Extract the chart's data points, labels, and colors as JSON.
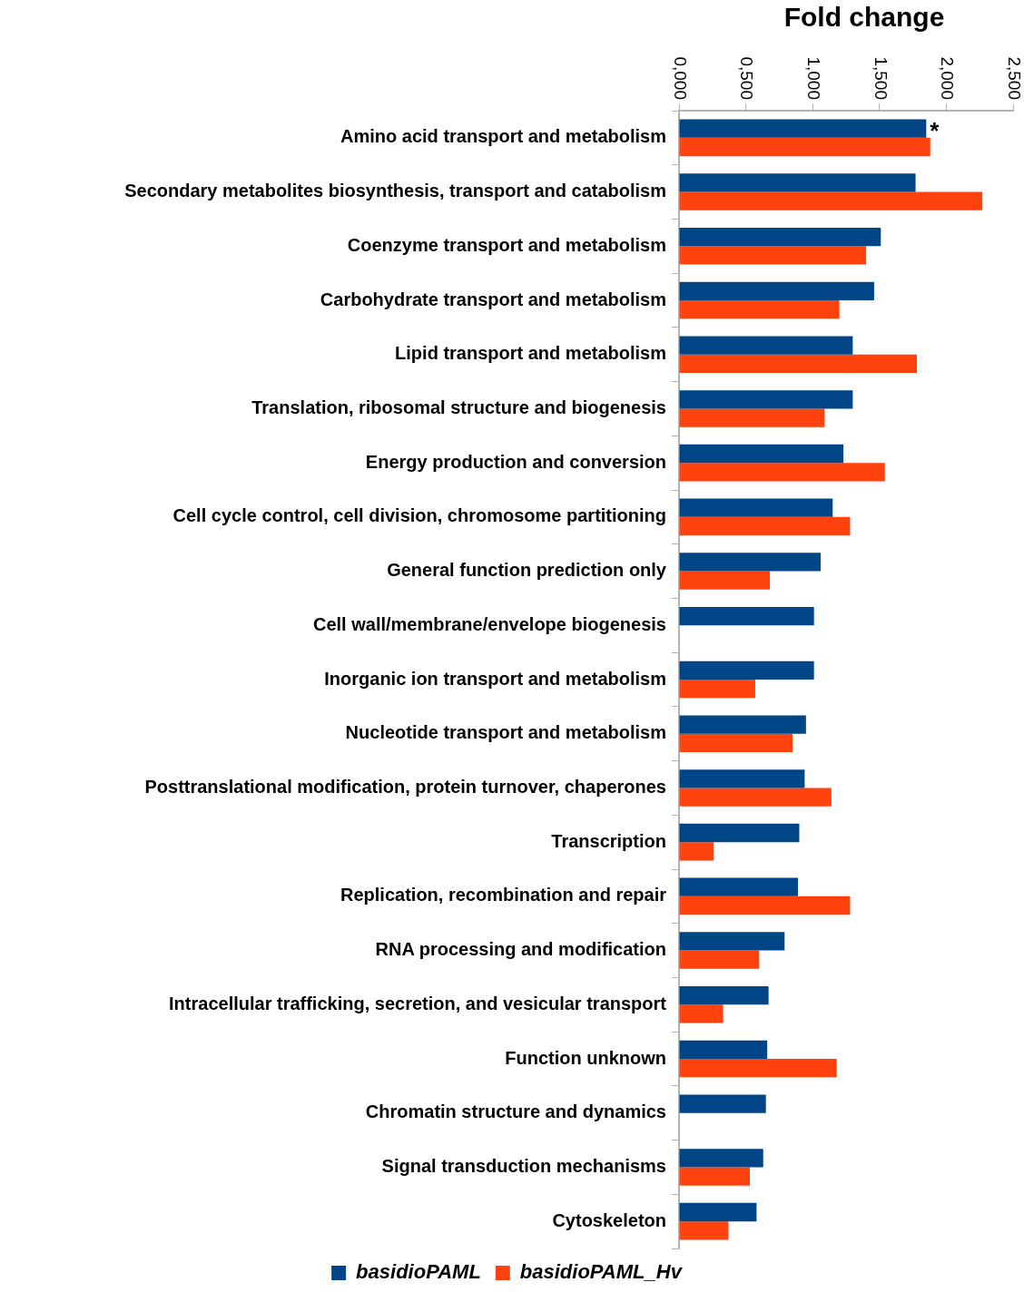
{
  "chart_data": {
    "type": "bar",
    "orientation": "horizontal",
    "title": "Fold change",
    "categories": [
      "Amino acid transport and metabolism",
      "Secondary metabolites biosynthesis, transport and catabolism",
      "Coenzyme transport and metabolism",
      "Carbohydrate transport and metabolism",
      "Lipid transport and metabolism",
      "Translation, ribosomal structure and biogenesis",
      "Energy production and conversion",
      "Cell cycle control, cell division, chromosome partitioning",
      "General function prediction only",
      "Cell wall/membrane/envelope biogenesis",
      "Inorganic ion transport and metabolism",
      "Nucleotide transport and metabolism",
      "Posttranslational modification, protein turnover, chaperones",
      "Transcription",
      "Replication, recombination and repair",
      "RNA processing and modification",
      "Intracellular trafficking, secretion, and vesicular transport",
      "Function unknown",
      "Chromatin structure and dynamics",
      "Signal transduction mechanisms",
      "Cytoskeleton"
    ],
    "series": [
      {
        "name": "basidioPAML",
        "color": "#004586",
        "values": [
          1.85,
          1.77,
          1.51,
          1.46,
          1.3,
          1.3,
          1.23,
          1.15,
          1.06,
          1.01,
          1.01,
          0.95,
          0.94,
          0.9,
          0.89,
          0.79,
          0.67,
          0.66,
          0.65,
          0.63,
          0.58
        ]
      },
      {
        "name": "basidioPAML_Hv",
        "color": "#ff420e",
        "values": [
          1.88,
          2.27,
          1.4,
          1.2,
          1.78,
          1.09,
          1.54,
          1.28,
          0.68,
          null,
          0.57,
          0.85,
          1.14,
          0.26,
          1.28,
          0.6,
          0.33,
          1.18,
          null,
          0.53,
          0.37
        ]
      }
    ],
    "xlim": [
      0,
      2.5
    ],
    "xticks": [
      {
        "value": 0,
        "label": "0,000"
      },
      {
        "value": 0.5,
        "label": "0,500"
      },
      {
        "value": 1,
        "label": "1,000"
      },
      {
        "value": 1.5,
        "label": "1,500"
      },
      {
        "value": 2,
        "label": "2,000"
      },
      {
        "value": 2.5,
        "label": "2,500"
      }
    ],
    "annotations": [
      {
        "text": "*",
        "x": 1.85,
        "y": "Amino acid transport and metabolism"
      }
    ],
    "grid": false,
    "legend": "bottom"
  }
}
